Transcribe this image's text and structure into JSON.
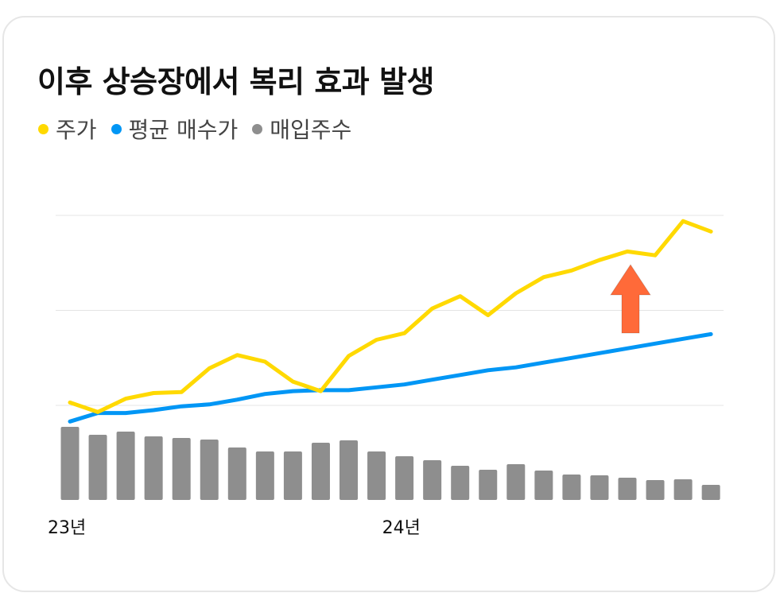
{
  "chart_data": {
    "type": "line",
    "title": "이후 상승장에서 복리 효과 발생",
    "x_tick_labels": [
      "23년",
      "24년"
    ],
    "legend_position": "top-left",
    "grid": "horizontal",
    "series": [
      {
        "name": "주가",
        "type": "line",
        "color": "#FFD900",
        "values": [
          2.03,
          1.93,
          2.07,
          2.13,
          2.14,
          2.39,
          2.53,
          2.46,
          2.25,
          2.15,
          2.52,
          2.69,
          2.76,
          3.02,
          3.15,
          2.95,
          3.18,
          3.35,
          3.42,
          3.53,
          3.62,
          3.58,
          3.94,
          3.83
        ]
      },
      {
        "name": "평균 매수가",
        "type": "line",
        "color": "#0096F5",
        "values": [
          1.83,
          1.92,
          1.92,
          1.95,
          1.99,
          2.01,
          2.06,
          2.12,
          2.15,
          2.16,
          2.16,
          2.19,
          2.22,
          2.27,
          2.32,
          2.37,
          2.4,
          2.45,
          2.5,
          2.55,
          2.6,
          2.65,
          2.7,
          2.75
        ]
      },
      {
        "name": "매입주수",
        "type": "bar",
        "color": "#8E8E8E",
        "values": [
          92,
          82,
          86,
          80,
          78,
          76,
          66,
          61,
          61,
          72,
          75,
          61,
          55,
          50,
          43,
          38,
          45,
          37,
          32,
          31,
          28,
          25,
          26,
          19
        ]
      }
    ],
    "highlight_arrow": {
      "color": "#FF6A39",
      "direction": "up",
      "near_index": 20
    }
  }
}
